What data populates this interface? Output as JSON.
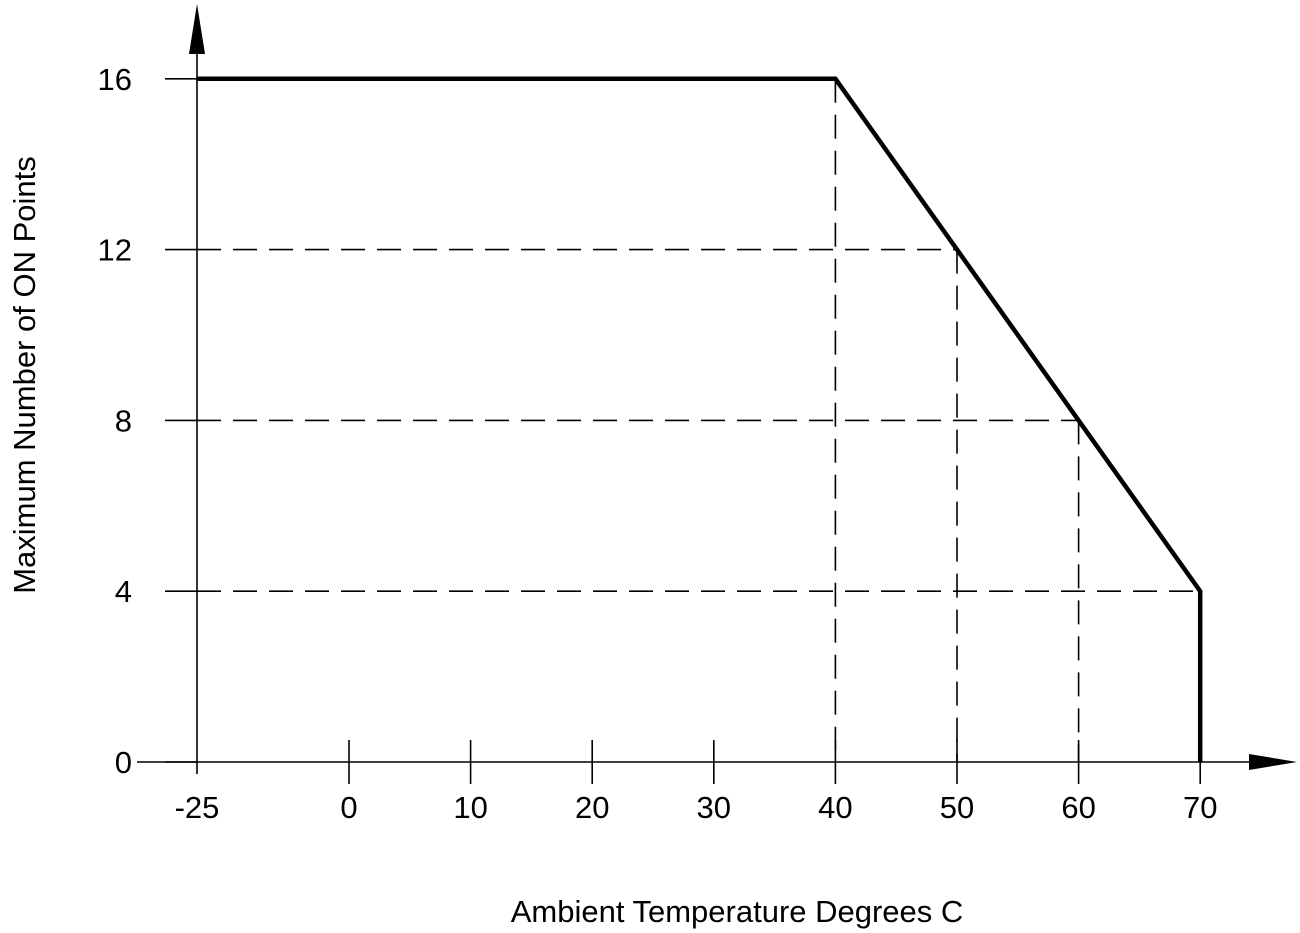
{
  "chart_data": {
    "type": "line",
    "title": "",
    "xlabel": "Ambient Temperature Degrees C",
    "ylabel": "Maximum Number of ON Points",
    "xlim": [
      -25,
      70
    ],
    "ylim": [
      0,
      16
    ],
    "x_ticks": [
      -25,
      0,
      10,
      20,
      30,
      40,
      50,
      60,
      70
    ],
    "x_tick_labels": [
      "-25",
      "0",
      "10",
      "20",
      "30",
      "40",
      "50",
      "60",
      "70"
    ],
    "y_ticks": [
      0,
      4,
      8,
      12,
      16
    ],
    "y_tick_labels": [
      "0",
      "4",
      "8",
      "12",
      "16"
    ],
    "grid": false,
    "x_axis_broken_scale": true,
    "series": [
      {
        "points": [
          {
            "x": -25,
            "y": 16
          },
          {
            "x": 40,
            "y": 16
          },
          {
            "x": 50,
            "y": 12
          },
          {
            "x": 60,
            "y": 8
          },
          {
            "x": 70,
            "y": 4
          },
          {
            "x": 70,
            "y": 0
          }
        ],
        "color": "#000000"
      }
    ],
    "reference_lines": [
      {
        "x": 40,
        "y": 16
      },
      {
        "x": 50,
        "y": 12
      },
      {
        "x": 60,
        "y": 8
      },
      {
        "x": 70,
        "y": 4
      }
    ]
  }
}
